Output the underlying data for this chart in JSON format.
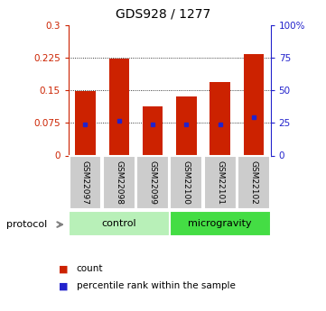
{
  "title": "GDS928 / 1277",
  "categories": [
    "GSM22097",
    "GSM22098",
    "GSM22099",
    "GSM22100",
    "GSM22101",
    "GSM22102"
  ],
  "bar_values": [
    0.148,
    0.222,
    0.113,
    0.135,
    0.168,
    0.232
  ],
  "percentile_values": [
    0.072,
    0.08,
    0.072,
    0.072,
    0.072,
    0.088
  ],
  "bar_color": "#cc2200",
  "percentile_color": "#2222cc",
  "ylim_left": [
    0,
    0.3
  ],
  "ylim_right": [
    0,
    100
  ],
  "yticks_left": [
    0,
    0.075,
    0.15,
    0.225,
    0.3
  ],
  "yticks_left_labels": [
    "0",
    "0.075",
    "0.15",
    "0.225",
    "0.3"
  ],
  "yticks_right": [
    0,
    25,
    50,
    75,
    100
  ],
  "yticks_right_labels": [
    "0",
    "25",
    "50",
    "75",
    "100%"
  ],
  "grid_values": [
    0.075,
    0.15,
    0.225
  ],
  "protocol_labels": [
    "control",
    "microgravity"
  ],
  "protocol_ranges": [
    [
      0,
      3
    ],
    [
      3,
      6
    ]
  ],
  "protocol_colors_control": "#b8f0b8",
  "protocol_colors_micro": "#44dd44",
  "protocol_text": "protocol",
  "legend_items": [
    "count",
    "percentile rank within the sample"
  ],
  "bar_width": 0.6,
  "left_axis_color": "#cc2200",
  "right_axis_color": "#2222cc",
  "tick_label_box_color": "#cccccc",
  "fig_width": 3.61,
  "fig_height": 3.45,
  "dpi": 100
}
